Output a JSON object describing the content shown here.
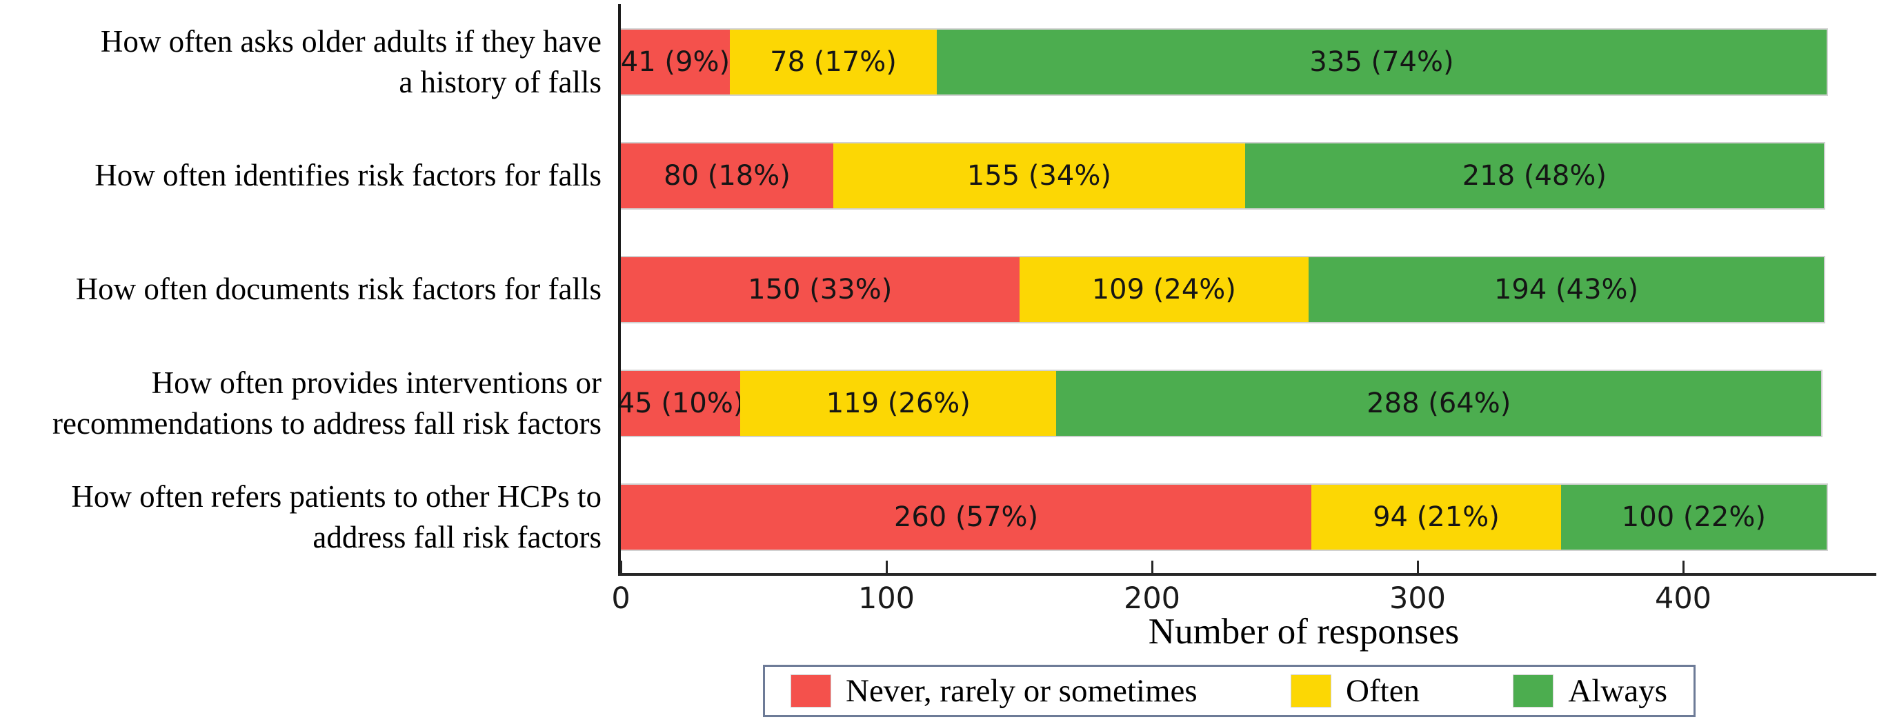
{
  "chart_data": {
    "type": "bar",
    "orientation": "horizontal",
    "stacked": true,
    "title": "",
    "xlabel": "Number of responses",
    "ylabel": "",
    "xlim": [
      0,
      473
    ],
    "x_ticks": [
      0,
      100,
      200,
      300,
      400
    ],
    "grid": false,
    "legend_position": "bottom",
    "categories": [
      "How often asks older adults if they have\na history of falls",
      "How often identifies risk factors for falls",
      "How often documents risk factors for falls",
      "How often provides interventions or\nrecommendations to address fall risk factors",
      "How often refers patients to other HCPs to\naddress fall risk factors"
    ],
    "series": [
      {
        "name": "Never, rarely or sometimes",
        "color": "#F4514C",
        "values": [
          41,
          80,
          150,
          45,
          260
        ],
        "labels": [
          "41 (9%)",
          "80 (18%)",
          "150 (33%)",
          "45 (10%)",
          "260 (57%)"
        ]
      },
      {
        "name": "Often",
        "color": "#FCD704",
        "values": [
          78,
          155,
          109,
          119,
          94
        ],
        "labels": [
          "78 (17%)",
          "155 (34%)",
          "109 (24%)",
          "119 (26%)",
          "94 (21%)"
        ]
      },
      {
        "name": "Always",
        "color": "#4CAD4F",
        "values": [
          335,
          218,
          194,
          288,
          100
        ],
        "labels": [
          "335 (74%)",
          "218 (48%)",
          "194 (43%)",
          "288 (64%)",
          "100 (22%)"
        ]
      }
    ],
    "colors": {
      "axis": "#262626",
      "bar_label_text": "#151515",
      "legend_border": "#6d7b97"
    }
  }
}
